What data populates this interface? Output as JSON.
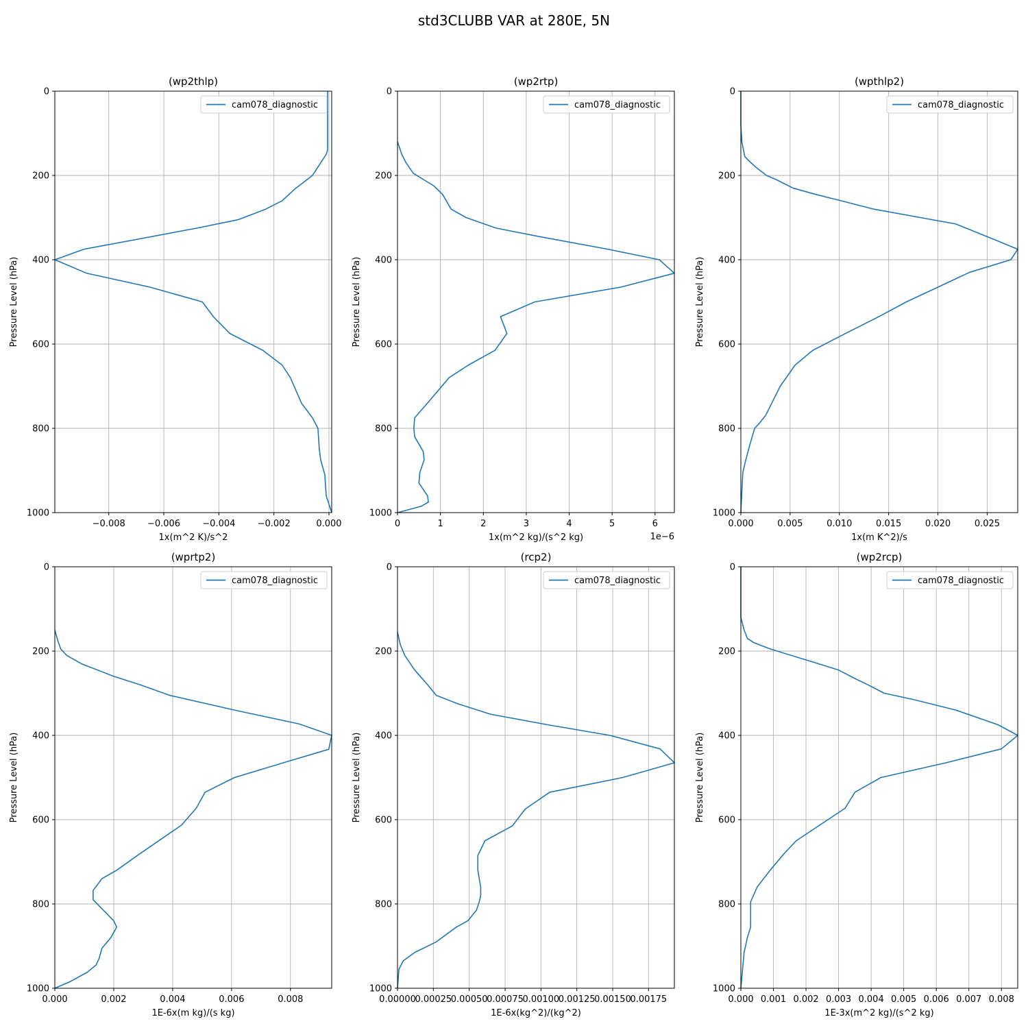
{
  "figure_title": "std3CLUBB VAR at 280E, 5N",
  "colors": {
    "line": "#1f77b4",
    "grid": "#b0b0b0"
  },
  "chart_data": [
    {
      "type": "line",
      "title": "(wp2thlp)",
      "xlabel": "1x(m^2 K)/s^2",
      "ylabel": "Pressure Level (hPa)",
      "xlim": [
        -0.00996,
        0.0001
      ],
      "ylim": [
        1000,
        0
      ],
      "xticks": [
        -0.008,
        -0.006,
        -0.004,
        -0.002,
        0.0
      ],
      "xtick_labels": [
        "−0.008",
        "−0.006",
        "−0.004",
        "−0.002",
        "0.000"
      ],
      "yticks": [
        0,
        200,
        400,
        600,
        800,
        1000
      ],
      "ytick_labels": [
        "0",
        "200",
        "400",
        "600",
        "800",
        "1000"
      ],
      "offset_text": "",
      "grid": true,
      "legend": {
        "position": "top-right",
        "entries": [
          "cam078_diagnostic"
        ]
      },
      "series": [
        {
          "name": "cam078_diagnostic",
          "x": [
            -5e-05,
            -5e-05,
            -5e-05,
            -5e-05,
            -5e-05,
            -0.0001,
            -0.0003,
            -0.0006,
            -0.0012,
            -0.0017,
            -0.0023,
            -0.0033,
            -0.0048,
            -0.0089,
            -0.00996,
            -0.0088,
            -0.0065,
            -0.0046,
            -0.0042,
            -0.0036,
            -0.0024,
            -0.0017,
            -0.0014,
            -0.001,
            -0.0006,
            -0.0004,
            -0.00035,
            -0.0003,
            -0.00015,
            -0.0001,
            0.0001
          ],
          "y": [
            0,
            50,
            100,
            120,
            140,
            150,
            170,
            200,
            230,
            260,
            280,
            305,
            325,
            375,
            400,
            432,
            465,
            500,
            535,
            575,
            615,
            650,
            680,
            740,
            775,
            800,
            850,
            875,
            910,
            960,
            1000
          ]
        }
      ]
    },
    {
      "type": "line",
      "title": "(wp2rtp)",
      "xlabel": "1x(m^2 kg)/(s^2 kg)",
      "ylabel": "Pressure Level (hPa)",
      "xlim": [
        0,
        6.45e-06
      ],
      "ylim": [
        1000,
        0
      ],
      "xticks": [
        0,
        1e-06,
        2e-06,
        3e-06,
        4e-06,
        5e-06,
        6e-06
      ],
      "xtick_labels": [
        "0",
        "1",
        "2",
        "3",
        "4",
        "5",
        "6"
      ],
      "yticks": [
        0,
        200,
        400,
        600,
        800,
        1000
      ],
      "ytick_labels": [
        "0",
        "200",
        "400",
        "600",
        "800",
        "1000"
      ],
      "offset_text": "1e−6",
      "grid": true,
      "legend": {
        "position": "top-right",
        "entries": [
          "cam078_diagnostic"
        ]
      },
      "series": [
        {
          "name": "cam078_diagnostic",
          "x": [
            0,
            1e-07,
            2e-07,
            3.7e-07,
            8.5e-07,
            1.05e-06,
            1.25e-06,
            1.6e-06,
            2.3e-06,
            3.3e-06,
            4.9e-06,
            6.1e-06,
            6.45e-06,
            5.2e-06,
            3.2e-06,
            2.4e-06,
            2.55e-06,
            2.27e-06,
            1.65e-06,
            1.2e-06,
            7e-07,
            4e-07,
            3.8e-07,
            4e-07,
            6e-07,
            6.2e-07,
            5.2e-07,
            5e-07,
            7e-07,
            7.2e-07,
            5.5e-07,
            0
          ],
          "y": [
            120,
            150,
            170,
            195,
            225,
            245,
            280,
            300,
            325,
            345,
            375,
            400,
            432,
            465,
            500,
            535,
            575,
            615,
            650,
            680,
            740,
            775,
            800,
            820,
            855,
            875,
            905,
            930,
            960,
            975,
            985,
            1000
          ]
        }
      ]
    },
    {
      "type": "line",
      "title": "(wpthlp2)",
      "xlabel": "1x(m K^2)/s",
      "ylabel": "Pressure Level (hPa)",
      "xlim": [
        0,
        0.0281
      ],
      "ylim": [
        1000,
        0
      ],
      "xticks": [
        0,
        0.005,
        0.01,
        0.015,
        0.02,
        0.025
      ],
      "xtick_labels": [
        "0.000",
        "0.005",
        "0.010",
        "0.015",
        "0.020",
        "0.025"
      ],
      "yticks": [
        0,
        200,
        400,
        600,
        800,
        1000
      ],
      "ytick_labels": [
        "0",
        "200",
        "400",
        "600",
        "800",
        "1000"
      ],
      "offset_text": "",
      "grid": true,
      "legend": {
        "position": "top-right",
        "entries": [
          "cam078_diagnostic"
        ]
      },
      "series": [
        {
          "name": "cam078_diagnostic",
          "x": [
            0,
            0,
            0.0001,
            0.0004,
            0.0008,
            0.0015,
            0.0026,
            0.0036,
            0.0053,
            0.0076,
            0.0105,
            0.0135,
            0.0218,
            0.0255,
            0.0281,
            0.0274,
            0.0232,
            0.02,
            0.0168,
            0.014,
            0.0102,
            0.0073,
            0.0055,
            0.004,
            0.0025,
            0.0018,
            0.0014,
            0.0009,
            0.0005,
            0.0002,
            0.0001,
            0
          ],
          "y": [
            0,
            80,
            120,
            155,
            165,
            180,
            200,
            210,
            230,
            245,
            262,
            280,
            315,
            350,
            375,
            400,
            430,
            465,
            500,
            535,
            580,
            615,
            650,
            700,
            770,
            790,
            800,
            840,
            875,
            905,
            950,
            1000
          ]
        }
      ]
    },
    {
      "type": "line",
      "title": "(wprtp2)",
      "xlabel": "1E-6x(m kg)/(s kg)",
      "ylabel": "Pressure Level (hPa)",
      "xlim": [
        0,
        0.0094
      ],
      "ylim": [
        1000,
        0
      ],
      "xticks": [
        0,
        0.002,
        0.004,
        0.006,
        0.008
      ],
      "xtick_labels": [
        "0.000",
        "0.002",
        "0.004",
        "0.006",
        "0.008"
      ],
      "yticks": [
        0,
        200,
        400,
        600,
        800,
        1000
      ],
      "ytick_labels": [
        "0",
        "200",
        "400",
        "600",
        "800",
        "1000"
      ],
      "offset_text": "",
      "grid": true,
      "legend": {
        "position": "top-right",
        "entries": [
          "cam078_diagnostic"
        ]
      },
      "series": [
        {
          "name": "cam078_diagnostic",
          "x": [
            0,
            0.0001,
            0.0002,
            0.0004,
            0.0009,
            0.002,
            0.0029,
            0.0039,
            0.0061,
            0.0083,
            0.0094,
            0.0093,
            0.008,
            0.0061,
            0.0051,
            0.0048,
            0.0043,
            0.0028,
            0.0021,
            0.0016,
            0.0013,
            0.0013,
            0.002,
            0.0021,
            0.0019,
            0.0016,
            0.0015,
            0.0014,
            0.0011,
            0.0005,
            0
          ],
          "y": [
            150,
            175,
            195,
            210,
            230,
            260,
            280,
            305,
            340,
            373,
            400,
            433,
            460,
            500,
            535,
            573,
            613,
            685,
            720,
            740,
            768,
            790,
            840,
            855,
            880,
            905,
            930,
            945,
            962,
            985,
            1000
          ]
        }
      ]
    },
    {
      "type": "line",
      "title": "(rcp2)",
      "xlabel": "1E-6x(kg^2)/(kg^2)",
      "ylabel": "Pressure Level (hPa)",
      "xlim": [
        0,
        0.00193
      ],
      "ylim": [
        1000,
        0
      ],
      "xticks": [
        0,
        0.00025,
        0.0005,
        0.00075,
        0.001,
        0.00125,
        0.0015,
        0.00175
      ],
      "xtick_labels": [
        "0.00000",
        "0.00025",
        "0.00050",
        "0.00075",
        "0.00100",
        "0.00125",
        "0.00150",
        "0.00175"
      ],
      "yticks": [
        0,
        200,
        400,
        600,
        800,
        1000
      ],
      "ytick_labels": [
        "0",
        "200",
        "400",
        "600",
        "800",
        "1000"
      ],
      "offset_text": "",
      "grid": true,
      "legend": {
        "position": "top-right",
        "entries": [
          "cam078_diagnostic"
        ]
      },
      "series": [
        {
          "name": "cam078_diagnostic",
          "x": [
            0,
            2e-05,
            5e-05,
            0.00012,
            0.00021,
            0.00027,
            0.00042,
            0.00065,
            0.00105,
            0.00148,
            0.00183,
            0.00193,
            0.00157,
            0.00106,
            0.00089,
            0.0008,
            0.00061,
            0.00056,
            0.00056,
            0.00058,
            0.00058,
            0.00057,
            0.00055,
            0.00049,
            0.00041,
            0.00027,
            0.00012,
            4e-05,
            1e-05,
            0
          ],
          "y": [
            155,
            185,
            210,
            245,
            280,
            305,
            325,
            350,
            375,
            400,
            432,
            465,
            500,
            535,
            575,
            615,
            650,
            685,
            720,
            760,
            780,
            795,
            815,
            840,
            855,
            890,
            915,
            935,
            955,
            1000
          ]
        }
      ]
    },
    {
      "type": "line",
      "title": "(wp2rcp)",
      "xlabel": "1E-3x(m^2 kg)/(s^2 kg)",
      "ylabel": "Pressure Level (hPa)",
      "xlim": [
        0,
        0.0085
      ],
      "ylim": [
        1000,
        0
      ],
      "xticks": [
        0,
        0.001,
        0.002,
        0.003,
        0.004,
        0.005,
        0.006,
        0.007,
        0.008
      ],
      "xtick_labels": [
        "0.000",
        "0.001",
        "0.002",
        "0.003",
        "0.004",
        "0.005",
        "0.006",
        "0.007",
        "0.008"
      ],
      "yticks": [
        0,
        200,
        400,
        600,
        800,
        1000
      ],
      "ytick_labels": [
        "0",
        "200",
        "400",
        "600",
        "800",
        "1000"
      ],
      "offset_text": "",
      "grid": true,
      "legend": {
        "position": "top-right",
        "entries": [
          "cam078_diagnostic"
        ]
      },
      "series": [
        {
          "name": "cam078_diagnostic",
          "x": [
            0,
            0,
            0.0001,
            0.0002,
            0.0004,
            0.0009,
            0.0023,
            0.003,
            0.0035,
            0.0039,
            0.0044,
            0.0053,
            0.0066,
            0.0079,
            0.0085,
            0.008,
            0.0063,
            0.0043,
            0.0035,
            0.0032,
            0.0017,
            0.0013,
            0.0009,
            0.0005,
            0.0003,
            0.0003,
            0.0003,
            0.0002,
            0.0001,
            0
          ],
          "y": [
            0,
            120,
            150,
            170,
            180,
            195,
            228,
            245,
            265,
            280,
            300,
            315,
            340,
            375,
            400,
            432,
            465,
            500,
            535,
            573,
            650,
            683,
            720,
            760,
            795,
            820,
            855,
            880,
            915,
            1000
          ]
        }
      ]
    }
  ]
}
